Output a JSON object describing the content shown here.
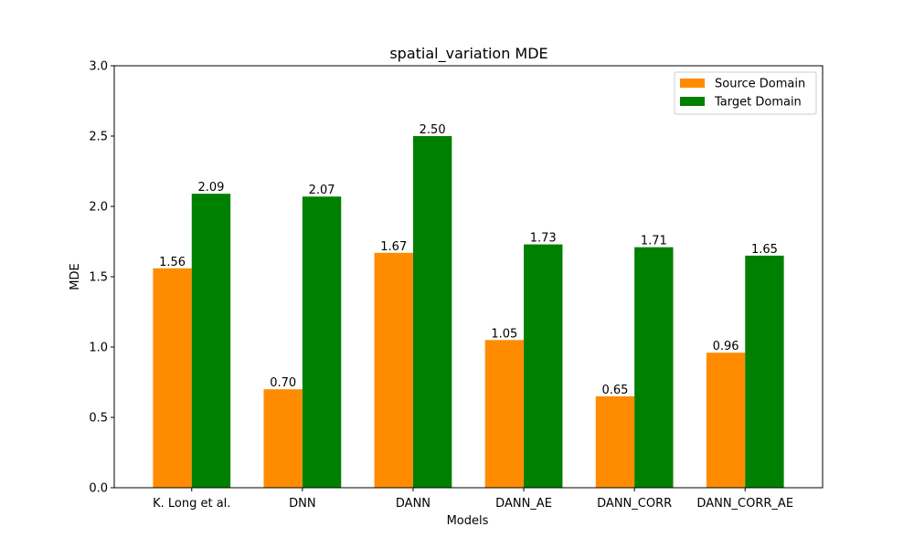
{
  "chart_data": {
    "type": "bar",
    "title": "spatial_variation MDE",
    "xlabel": "Models",
    "ylabel": "MDE",
    "ylim": [
      0,
      3.0
    ],
    "yticks": [
      "0.0",
      "0.5",
      "1.0",
      "1.5",
      "2.0",
      "2.5",
      "3.0"
    ],
    "categories": [
      "K. Long et al.",
      "DNN",
      "DANN",
      "DANN_AE",
      "DANN_CORR",
      "DANN_CORR_AE"
    ],
    "series": [
      {
        "name": "Source Domain",
        "color": "#ff8c00",
        "values": [
          1.56,
          0.7,
          1.67,
          1.05,
          0.65,
          0.96
        ],
        "labels": [
          "1.56",
          "0.70",
          "1.67",
          "1.05",
          "0.65",
          "0.96"
        ]
      },
      {
        "name": "Target Domain",
        "color": "#008000",
        "values": [
          2.09,
          2.07,
          2.5,
          1.73,
          1.71,
          1.65
        ],
        "labels": [
          "2.09",
          "2.07",
          "2.50",
          "1.73",
          "1.71",
          "1.65"
        ]
      }
    ],
    "legend_position": "top-right",
    "grid": false
  }
}
